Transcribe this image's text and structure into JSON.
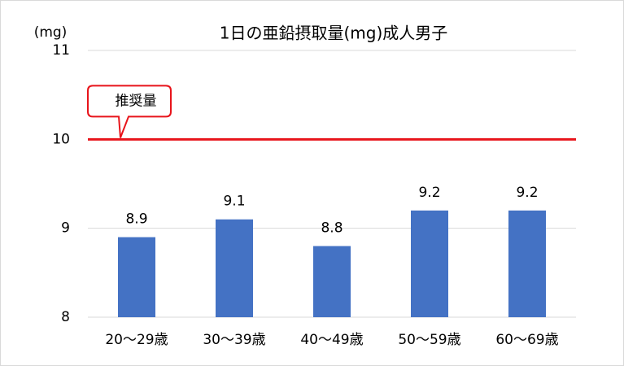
{
  "chart_data": {
    "type": "bar",
    "title": "1日の亜鉛摂取量(mg)成人男子",
    "y_label": "(mg)",
    "categories": [
      "20～29歳",
      "30～39歳",
      "40～49歳",
      "50～59歳",
      "60～69歳"
    ],
    "values": [
      8.9,
      9.1,
      8.8,
      9.2,
      9.2
    ],
    "color": "#4472c4",
    "ylim": [
      8,
      11
    ],
    "yticks": [
      8,
      9,
      10,
      11
    ],
    "grid": true,
    "reference_line": {
      "value": 10,
      "label": "推奨量",
      "color": "#e8141b"
    }
  }
}
